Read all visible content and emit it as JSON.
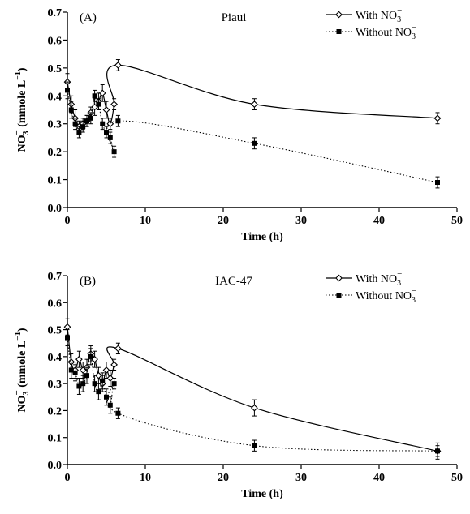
{
  "chart_data": [
    {
      "type": "line",
      "panel_label": "(A)",
      "title": "Piaui",
      "xlabel": "Time (h)",
      "ylabel_main": "NO",
      "ylabel_sub": "3",
      "ylabel_sup": "−",
      "ylabel_units": " (mmole L",
      "ylabel_units_sup": "−1",
      "ylabel_close": ")",
      "xlim": [
        0,
        50
      ],
      "ylim": [
        0,
        0.7
      ],
      "xticks": [
        "0",
        "10",
        "20",
        "30",
        "40",
        "50"
      ],
      "yticks": [
        "0.0",
        "0.1",
        "0.2",
        "0.3",
        "0.4",
        "0.5",
        "0.6",
        "0.7"
      ],
      "legend_position": "top-right",
      "series": [
        {
          "name": "With NO3−",
          "legend_main": "With NO",
          "legend_sub": "3",
          "legend_sup": "−",
          "marker": "open-diamond",
          "line": "solid",
          "x": [
            0,
            0.5,
            1,
            1.5,
            2,
            2.5,
            3,
            3.5,
            4,
            4.5,
            5,
            5.5,
            6,
            6.5,
            24,
            47.5
          ],
          "y": [
            0.45,
            0.37,
            0.32,
            0.29,
            0.3,
            0.31,
            0.34,
            0.36,
            0.38,
            0.41,
            0.35,
            0.3,
            0.37,
            0.51,
            0.37,
            0.32
          ],
          "err": [
            0.03,
            0.03,
            0.03,
            0.02,
            0.02,
            0.02,
            0.02,
            0.03,
            0.03,
            0.03,
            0.03,
            0.02,
            0.02,
            0.02,
            0.02,
            0.02
          ]
        },
        {
          "name": "Without NO3−",
          "legend_main": "Without NO",
          "legend_sub": "3",
          "legend_sup": "−",
          "marker": "filled-square",
          "line": "dotted",
          "x": [
            0,
            0.5,
            1,
            1.5,
            2,
            2.5,
            3,
            3.5,
            4,
            4.5,
            5,
            5.5,
            6,
            6.5,
            24,
            47.5
          ],
          "y": [
            0.42,
            0.35,
            0.3,
            0.27,
            0.29,
            0.31,
            0.32,
            0.4,
            0.37,
            0.3,
            0.27,
            0.25,
            0.2,
            0.31,
            0.23,
            0.09
          ],
          "err": [
            0.03,
            0.03,
            0.02,
            0.02,
            0.02,
            0.02,
            0.02,
            0.02,
            0.02,
            0.02,
            0.02,
            0.02,
            0.02,
            0.02,
            0.02,
            0.02
          ]
        }
      ]
    },
    {
      "type": "line",
      "panel_label": "(B)",
      "title": "IAC-47",
      "xlabel": "Time (h)",
      "ylabel_main": "NO",
      "ylabel_sub": "3",
      "ylabel_sup": "−",
      "ylabel_units": " (mmole L",
      "ylabel_units_sup": "−1",
      "ylabel_close": ")",
      "xlim": [
        0,
        50
      ],
      "ylim": [
        0,
        0.7
      ],
      "xticks": [
        "0",
        "10",
        "20",
        "30",
        "40",
        "50"
      ],
      "yticks": [
        "0.0",
        "0.1",
        "0.2",
        "0.3",
        "0.4",
        "0.5",
        "0.6",
        "0.7"
      ],
      "legend_position": "top-right",
      "series": [
        {
          "name": "With NO3−",
          "legend_main": "With NO",
          "legend_sub": "3",
          "legend_sup": "−",
          "marker": "open-diamond",
          "line": "solid",
          "x": [
            0,
            0.5,
            1,
            1.5,
            2,
            2.5,
            3,
            3.5,
            4,
            4.5,
            5,
            5.5,
            6,
            6.5,
            24,
            47.5
          ],
          "y": [
            0.51,
            0.38,
            0.35,
            0.39,
            0.35,
            0.36,
            0.41,
            0.39,
            0.33,
            0.3,
            0.35,
            0.32,
            0.37,
            0.43,
            0.21,
            0.05
          ],
          "err": [
            0.03,
            0.03,
            0.03,
            0.03,
            0.03,
            0.03,
            0.03,
            0.03,
            0.03,
            0.03,
            0.03,
            0.03,
            0.02,
            0.02,
            0.03,
            0.02
          ]
        },
        {
          "name": "Without NO3−",
          "legend_main": "Without NO",
          "legend_sub": "3",
          "legend_sup": "−",
          "marker": "filled-square",
          "line": "dotted",
          "x": [
            0,
            0.5,
            1,
            1.5,
            2,
            2.5,
            3,
            3.5,
            4,
            4.5,
            5,
            5.5,
            6,
            6.5,
            24,
            47.5
          ],
          "y": [
            0.47,
            0.35,
            0.34,
            0.29,
            0.3,
            0.33,
            0.4,
            0.3,
            0.27,
            0.31,
            0.25,
            0.22,
            0.3,
            0.19,
            0.07,
            0.05
          ],
          "err": [
            0.03,
            0.03,
            0.03,
            0.03,
            0.03,
            0.03,
            0.03,
            0.03,
            0.03,
            0.03,
            0.03,
            0.03,
            0.02,
            0.02,
            0.02,
            0.03
          ]
        }
      ]
    }
  ]
}
